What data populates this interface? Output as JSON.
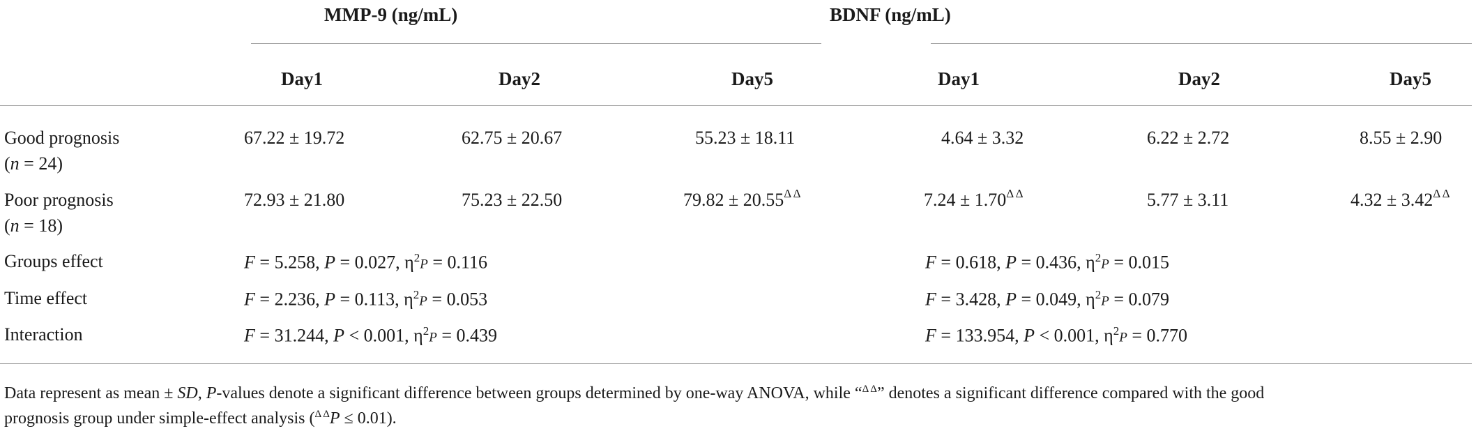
{
  "table": {
    "groups": [
      {
        "label": "MMP-9 (ng/mL)"
      },
      {
        "label": "BDNF (ng/mL)"
      }
    ],
    "columns": [
      "Day1",
      "Day2",
      "Day5",
      "Day1",
      "Day2",
      "Day5"
    ],
    "rows": [
      {
        "label": "Good prognosis",
        "sub_n": "n",
        "sub_rest": " = 24)",
        "cells": [
          {
            "v": "67.22 ± 19.72",
            "m": ""
          },
          {
            "v": "62.75 ± 20.67",
            "m": ""
          },
          {
            "v": "55.23 ± 18.11",
            "m": ""
          },
          {
            "v": "4.64 ± 3.32",
            "m": ""
          },
          {
            "v": "6.22 ± 2.72",
            "m": ""
          },
          {
            "v": "8.55 ± 2.90",
            "m": ""
          }
        ]
      },
      {
        "label": "Poor prognosis",
        "sub_n": "n",
        "sub_rest": " = 18)",
        "cells": [
          {
            "v": "72.93 ± 21.80",
            "m": ""
          },
          {
            "v": "75.23 ± 22.50",
            "m": ""
          },
          {
            "v": "79.82 ± 20.55",
            "m": "Δ Δ"
          },
          {
            "v": "7.24 ± 1.70",
            "m": "Δ Δ"
          },
          {
            "v": "5.77 ± 3.11",
            "m": ""
          },
          {
            "v": "4.32 ± 3.42",
            "m": "Δ Δ"
          }
        ]
      }
    ],
    "effects": [
      {
        "label": "Groups effect",
        "mmp9": {
          "F": "5.258",
          "P": "0.027",
          "eta": "0.116"
        },
        "bdnf": {
          "F": "0.618",
          "P": "0.436",
          "eta": "0.015"
        }
      },
      {
        "label": "Time effect",
        "mmp9": {
          "F": "2.236",
          "P": "0.113",
          "eta": "0.053"
        },
        "bdnf": {
          "F": "3.428",
          "P": "0.049",
          "eta": "0.079"
        }
      },
      {
        "label": "Interaction",
        "mmp9": {
          "F": "31.244",
          "P": "< 0.001",
          "eta": "0.439"
        },
        "bdnf": {
          "F": "133.954",
          "P": "< 0.001",
          "eta": "0.770"
        }
      }
    ],
    "effect_symbols": {
      "F": "F",
      "P": "P",
      "eta": "η",
      "eta_sup": "2",
      "eta_sub": "P",
      "eq": " = "
    }
  },
  "footnote": {
    "line1_a": "Data represent as mean ± ",
    "line1_sd": "SD",
    "line1_b": ", ",
    "line1_p": "P",
    "line1_c": "-values denote a significant difference between groups determined by one-way ANOVA, while “",
    "line1_mark": "Δ Δ",
    "line1_d": "” denotes a significant difference compared with the good",
    "line2_a": "prognosis group under simple-effect analysis (",
    "line2_mark": "Δ Δ",
    "line2_p": "P",
    "line2_b": " ≤ 0.01)."
  }
}
